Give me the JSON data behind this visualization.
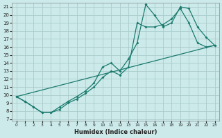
{
  "xlabel": "Humidex (Indice chaleur)",
  "background_color": "#cceaea",
  "grid_color": "#aacccc",
  "line_color": "#1a7a6e",
  "line1_x": [
    0,
    1,
    2,
    3,
    4,
    5,
    6,
    7,
    8,
    9,
    10,
    11,
    12,
    13,
    14,
    15,
    16,
    17,
    18,
    19,
    20,
    21,
    22,
    23
  ],
  "line1_y": [
    9.8,
    9.2,
    8.5,
    7.8,
    7.8,
    8.5,
    9.2,
    9.8,
    10.5,
    11.5,
    13.5,
    14.0,
    13.0,
    14.5,
    16.5,
    21.3,
    20.0,
    18.5,
    19.0,
    21.0,
    20.8,
    18.5,
    17.2,
    16.2
  ],
  "line2_x": [
    0,
    1,
    2,
    3,
    4,
    5,
    6,
    7,
    8,
    9,
    10,
    11,
    12,
    13,
    14,
    15,
    16,
    17,
    18,
    19,
    20,
    21,
    22,
    23
  ],
  "line2_y": [
    9.8,
    9.2,
    8.5,
    7.8,
    7.8,
    8.2,
    9.0,
    9.5,
    10.2,
    11.0,
    12.2,
    13.0,
    12.5,
    13.5,
    19.0,
    18.5,
    18.5,
    18.8,
    19.5,
    20.8,
    19.0,
    16.5,
    16.0,
    16.2
  ],
  "line3_x": [
    0,
    23
  ],
  "line3_y": [
    9.8,
    16.2
  ],
  "yticks": [
    7,
    8,
    9,
    10,
    11,
    12,
    13,
    14,
    15,
    16,
    17,
    18,
    19,
    20,
    21
  ],
  "xticks": [
    0,
    1,
    2,
    3,
    4,
    5,
    6,
    7,
    8,
    9,
    10,
    11,
    12,
    13,
    14,
    15,
    16,
    17,
    18,
    19,
    20,
    21,
    22,
    23
  ],
  "xlim": [
    -0.5,
    23.5
  ],
  "ylim": [
    6.8,
    21.5
  ]
}
